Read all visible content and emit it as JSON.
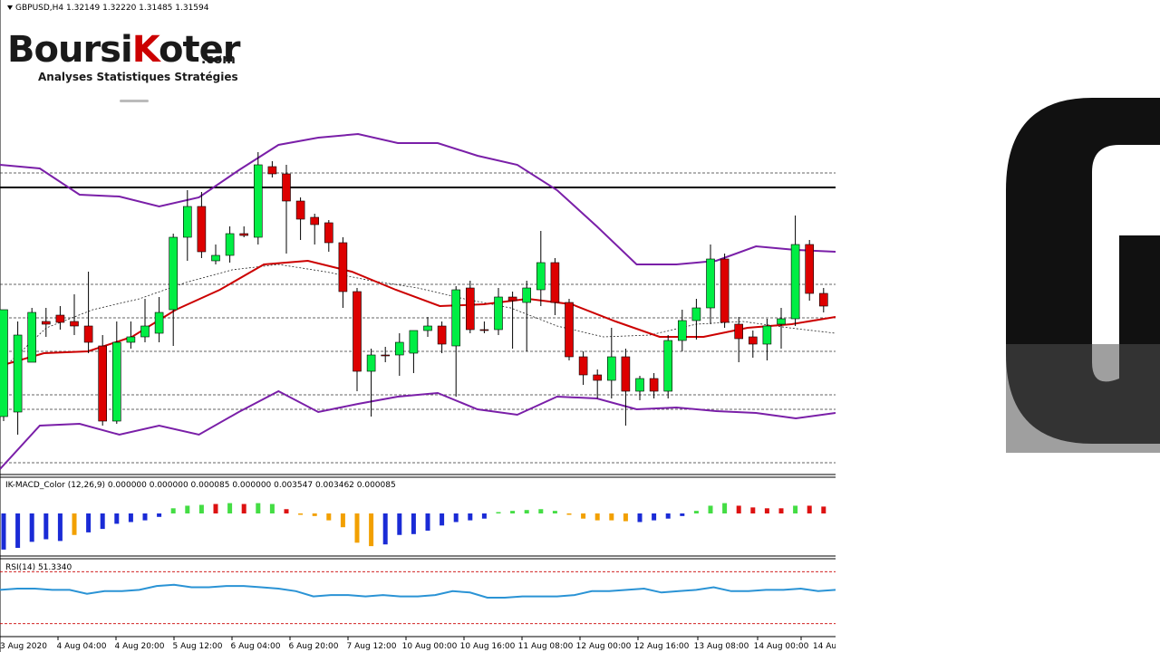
{
  "header": {
    "symbol_line": "GBPUSD,H4  1.32149 1.32220 1.31485 1.31594",
    "macd_line": "IK-MACD_Color (12,26,9) 0.000000 0.000000 0.000085 0.000000 0.003547 0.003462 0.000085",
    "rsi_line": "RSI(14) 51.3340"
  },
  "logo": {
    "brand_part1": "Boursi",
    "brand_k": "K",
    "brand_part2": "oter",
    "brand_suffix": ".com",
    "tagline": "Analyses Statistiques Stratégies"
  },
  "colors": {
    "bull": "#00ee44",
    "bear": "#dd0000",
    "bollinger": "#7a1fa8",
    "ma": "#cc0000",
    "rsi": "#2a93d5",
    "macd_blue": "#1a2bd6",
    "macd_orange": "#f2a000",
    "macd_green": "#44dd44",
    "macd_red": "#dd1111"
  },
  "chart_data": [
    {
      "type": "candlestick",
      "title": "GBPUSD,H4",
      "ohlc_latest": {
        "open": 1.32149,
        "high": 1.3222,
        "low": 1.31485,
        "close": 1.31594
      },
      "x_labels": [
        "3 Aug 2020",
        "4 Aug 04:00",
        "4 Aug 20:00",
        "5 Aug 12:00",
        "6 Aug 04:00",
        "6 Aug 20:00",
        "7 Aug 12:00",
        "10 Aug 00:00",
        "10 Aug 16:00",
        "11 Aug 08:00",
        "12 Aug 00:00",
        "12 Aug 16:00",
        "13 Aug 08:00",
        "14 Aug 00:00",
        "14 Au"
      ],
      "candles": [
        [
          460,
          342,
          345,
          465
        ],
        [
          455,
          370,
          355,
          480
        ],
        [
          400,
          345,
          340,
          400
        ],
        [
          355,
          358,
          340,
          372
        ],
        [
          348,
          356,
          338,
          364
        ],
        [
          355,
          360,
          325,
          370
        ],
        [
          360,
          378,
          300,
          390
        ],
        [
          382,
          465,
          370,
          470
        ],
        [
          465,
          378,
          355,
          468
        ],
        [
          378,
          372,
          355,
          385
        ],
        [
          372,
          360,
          330,
          378
        ],
        [
          368,
          345,
          328,
          378
        ],
        [
          342,
          262,
          258,
          382
        ],
        [
          262,
          228,
          210,
          288
        ],
        [
          228,
          278,
          212,
          285
        ],
        [
          288,
          282,
          270,
          292
        ],
        [
          282,
          258,
          250,
          290
        ],
        [
          258,
          260,
          250,
          262
        ],
        [
          262,
          182,
          168,
          270
        ],
        [
          184,
          192,
          178,
          196
        ],
        [
          192,
          222,
          182,
          280
        ],
        [
          222,
          242,
          218,
          265
        ],
        [
          240,
          248,
          236,
          270
        ],
        [
          246,
          268,
          243,
          278
        ],
        [
          268,
          322,
          262,
          340
        ],
        [
          322,
          410,
          318,
          432
        ],
        [
          410,
          392,
          385,
          460
        ],
        [
          392,
          392,
          383,
          400
        ],
        [
          392,
          378,
          368,
          415
        ],
        [
          390,
          365,
          368,
          412
        ],
        [
          365,
          360,
          350,
          372
        ],
        [
          360,
          380,
          355,
          390
        ],
        [
          382,
          320,
          316,
          438
        ],
        [
          318,
          364,
          310,
          368
        ],
        [
          364,
          364,
          355,
          368
        ],
        [
          364,
          328,
          318,
          370
        ],
        [
          328,
          332,
          322,
          385
        ],
        [
          334,
          318,
          310,
          388
        ],
        [
          320,
          290,
          255,
          338
        ],
        [
          290,
          334,
          285,
          348
        ],
        [
          334,
          394,
          330,
          398
        ],
        [
          394,
          414,
          388,
          425
        ],
        [
          414,
          420,
          408,
          440
        ],
        [
          420,
          394,
          362,
          440
        ],
        [
          394,
          432,
          385,
          470
        ],
        [
          432,
          418,
          415,
          442
        ],
        [
          418,
          432,
          412,
          440
        ],
        [
          432,
          376,
          370,
          440
        ],
        [
          376,
          354,
          342,
          388
        ],
        [
          354,
          340,
          330,
          375
        ],
        [
          340,
          286,
          270,
          358
        ],
        [
          286,
          356,
          280,
          362
        ],
        [
          358,
          374,
          350,
          400
        ],
        [
          372,
          380,
          365,
          395
        ],
        [
          380,
          360,
          352,
          398
        ],
        [
          358,
          352,
          340,
          385
        ],
        [
          352,
          270,
          238,
          360
        ],
        [
          270,
          324,
          265,
          332
        ],
        [
          324,
          338,
          318,
          345
        ]
      ],
      "bollinger_upper": [
        182,
        186,
        215,
        217,
        228,
        218,
        188,
        160,
        152,
        148,
        158,
        158,
        172,
        182,
        210,
        250,
        292,
        292,
        288,
        272,
        276,
        278
      ],
      "bollinger_lower": [
        518,
        470,
        468,
        480,
        470,
        480,
        455,
        432,
        455,
        446,
        438,
        434,
        452,
        458,
        438,
        440,
        452,
        450,
        454,
        456,
        462,
        456
      ],
      "ma_red": [
        404,
        390,
        388,
        372,
        342,
        320,
        292,
        288,
        300,
        320,
        338,
        336,
        330,
        336,
        355,
        372,
        372,
        362,
        358,
        350
      ],
      "ma_dotted": [
        410,
        362,
        342,
        330,
        312,
        298,
        292,
        300,
        310,
        318,
        330,
        340,
        360,
        372,
        370,
        358,
        355,
        362,
        368
      ],
      "hlines_dashed": [
        191,
        314,
        351,
        388,
        436,
        452,
        511
      ],
      "hline_solid": 207
    },
    {
      "type": "bar",
      "title": "IK-MACD_Color (12,26,9)",
      "values": [
        -0.0042,
        -0.004,
        -0.0033,
        -0.003,
        -0.0032,
        -0.0025,
        -0.0022,
        -0.0018,
        -0.0012,
        -0.001,
        -0.0008,
        -0.0004,
        0.0006,
        0.0009,
        0.001,
        0.0011,
        0.0012,
        0.0011,
        0.0012,
        0.0011,
        0.0005,
        -0.0001,
        -0.0003,
        -0.0008,
        -0.0016,
        -0.0034,
        -0.0038,
        -0.0036,
        -0.0025,
        -0.0024,
        -0.002,
        -0.0014,
        -0.001,
        -0.0008,
        -0.0006,
        0.0001,
        0.0003,
        0.0004,
        0.0005,
        0.0003,
        -0.0001,
        -0.0006,
        -0.0008,
        -0.0008,
        -0.0009,
        -0.001,
        -0.0008,
        -0.0006,
        -0.0003,
        0.0003,
        0.0009,
        0.0012,
        0.0009,
        0.0007,
        0.0006,
        0.0006,
        0.0009,
        0.0009,
        0.0008
      ],
      "colors": [
        "blue",
        "blue",
        "blue",
        "blue",
        "blue",
        "orange",
        "blue",
        "blue",
        "blue",
        "blue",
        "blue",
        "blue",
        "green",
        "green",
        "green",
        "red",
        "green",
        "red",
        "green",
        "green",
        "red",
        "orange",
        "orange",
        "orange",
        "orange",
        "orange",
        "orange",
        "blue",
        "blue",
        "blue",
        "blue",
        "blue",
        "blue",
        "blue",
        "blue",
        "green",
        "green",
        "green",
        "green",
        "green",
        "orange",
        "orange",
        "orange",
        "orange",
        "orange",
        "blue",
        "blue",
        "blue",
        "blue",
        "green",
        "green",
        "green",
        "red",
        "red",
        "red",
        "red",
        "green",
        "red",
        "red"
      ]
    },
    {
      "type": "line",
      "title": "RSI(14)",
      "latest": 51.334,
      "levels": [
        70,
        30
      ],
      "ylim": [
        20,
        80
      ],
      "values": [
        56,
        57,
        57,
        56,
        56,
        53,
        55,
        55,
        56,
        59,
        60,
        58,
        58,
        59,
        59,
        58,
        57,
        55,
        51,
        52,
        52,
        51,
        52,
        51,
        51,
        52,
        55,
        54,
        50,
        50,
        51,
        51,
        51,
        52,
        55,
        55,
        56,
        57,
        54,
        55,
        56,
        58,
        55,
        55,
        56,
        56,
        57,
        55,
        56
      ]
    }
  ]
}
